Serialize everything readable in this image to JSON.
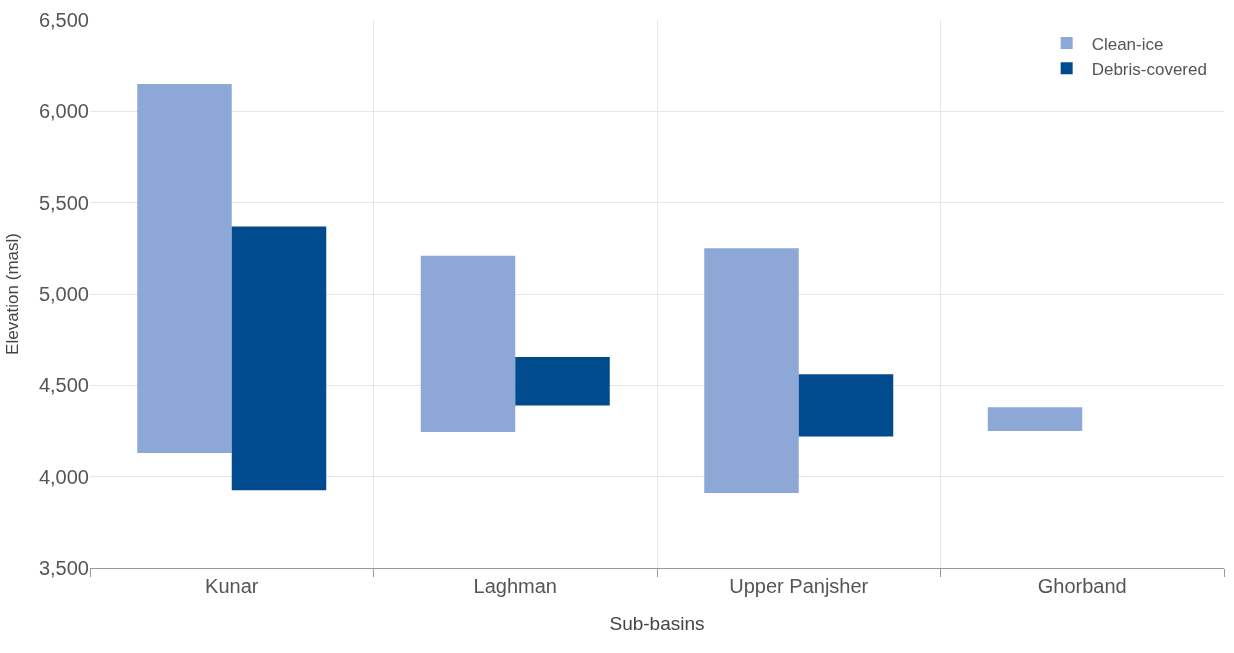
{
  "chart_data": {
    "type": "bar",
    "xlabel": "Sub-basins",
    "ylabel": "Elevation (masl)",
    "categories": [
      "Kunar",
      "Laghman",
      "Upper Panjsher",
      "Ghorband"
    ],
    "series": [
      {
        "name": "Clean-ice",
        "color": "#8da7d6",
        "values": [
          2020,
          965,
          1340,
          130
        ],
        "base": [
          4130,
          4245,
          3910,
          4250
        ]
      },
      {
        "name": "Debris-covered",
        "color": "#004b8d",
        "values": [
          1445,
          265,
          340,
          null
        ],
        "base": [
          3925,
          4390,
          4220,
          null
        ]
      }
    ],
    "ylim": [
      3500,
      6500
    ],
    "yticks": [
      {
        "value": 3500,
        "label": "3,500"
      },
      {
        "value": 4000,
        "label": "4,000"
      },
      {
        "value": 4500,
        "label": "4,500"
      },
      {
        "value": 5000,
        "label": "5,000"
      },
      {
        "value": 5500,
        "label": "5,500"
      },
      {
        "value": 6000,
        "label": "6,000"
      },
      {
        "value": 6500,
        "label": "6,500"
      }
    ],
    "grid": true,
    "legend": "top right"
  }
}
